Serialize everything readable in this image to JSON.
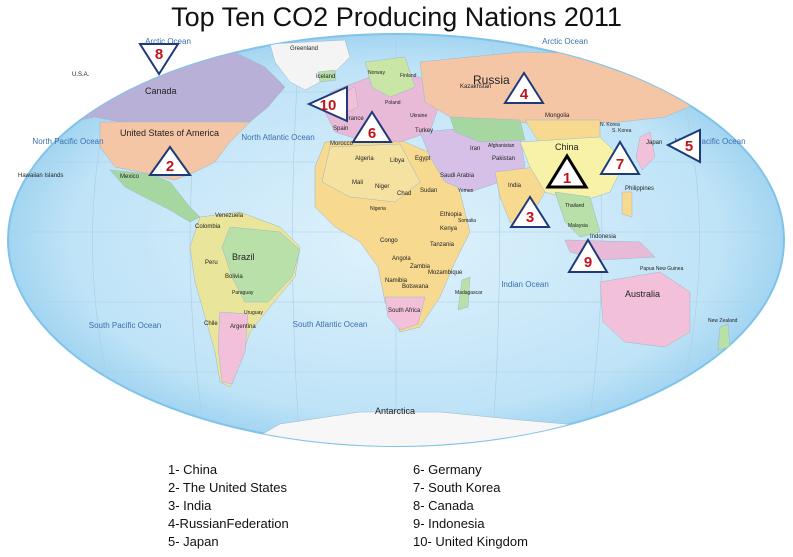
{
  "title": "Top Ten CO2 Producing Nations 2011",
  "legend_left": [
    "1- China",
    "2- The United States",
    "3- India",
    "4-RussianFederation",
    "5- Japan"
  ],
  "legend_right": [
    "6- Germany",
    "7- South Korea",
    "8- Canada",
    "9- Indonesia",
    "10- United Kingdom"
  ],
  "markers": [
    "1",
    "2",
    "3",
    "4",
    "5",
    "6",
    "7",
    "8",
    "9",
    "10"
  ],
  "countries": {
    "russia": "Russia",
    "canada": "Canada",
    "usa": "United States of America",
    "china": "China",
    "brazil": "Brazil",
    "australia": "Australia",
    "antarctica": "Antarctica",
    "greenland": "Greenland",
    "india": "India",
    "mongolia": "Mongolia",
    "kazakhstan": "Kazakhstan",
    "algeria": "Algeria",
    "libya": "Libya",
    "egypt": "Egypt",
    "sudan": "Sudan",
    "chad": "Chad",
    "niger": "Niger",
    "mali": "Mali",
    "mexico": "Mexico",
    "peru": "Peru",
    "bolivia": "Bolivia",
    "argentina": "Argentina",
    "chile": "Chile",
    "colombia": "Colombia",
    "venezuela": "Venezuela",
    "iran": "Iran",
    "saudi": "Saudi Arabia",
    "ethiopia": "Ethiopia",
    "angola": "Angola",
    "namibia": "Namibia",
    "botswana": "Botswana",
    "japan": "Japan",
    "indonesia": "Indonesia",
    "philippines": "Philippines",
    "turkey": "Turkey",
    "france": "France",
    "spain": "Spain",
    "morocco": "Morocco",
    "iceland": "Iceland",
    "usa_short": "U.S.A.",
    "congo": "Congo",
    "zambia": "Zambia",
    "tanzania": "Tanzania",
    "kenya": "Kenya",
    "mozambique": "Mozambique",
    "madagascar": "Madagascar",
    "south_africa": "South Africa",
    "pakistan": "Pakistan",
    "afghanistan": "Afghanistan",
    "thailand": "Thailand",
    "paraguay": "Paraguay",
    "uruguay": "Uruguay",
    "nz": "New Zealand",
    "papua": "Papua New Guinea",
    "hawaii": "Hawaiian Islands",
    "norway": "Norway",
    "finland": "Finland",
    "ukraine": "Ukraine",
    "poland": "Poland",
    "nigeria": "Nigeria",
    "somalia": "Somalia",
    "yemen": "Yemen",
    "malaysia": "Malaysia",
    "south_korea": "S. Korea",
    "north_korea": "N. Korea"
  },
  "oceans": {
    "arctic_left": "Arctic Ocean",
    "arctic_right": "Arctic Ocean",
    "north_pacific_left": "North Pacific Ocean",
    "north_pacific_right": "North Pacific Ocean",
    "north_atlantic": "North Atlantic Ocean",
    "south_atlantic": "South Atlantic Ocean",
    "south_pacific": "South Pacific Ocean",
    "indian": "Indian Ocean"
  },
  "colors": {
    "ocean": "#bfe3f7",
    "ocean_edge": "#7fc3ea",
    "marker_number": "#c0141c",
    "marker_stroke": "#1f3a7a"
  }
}
